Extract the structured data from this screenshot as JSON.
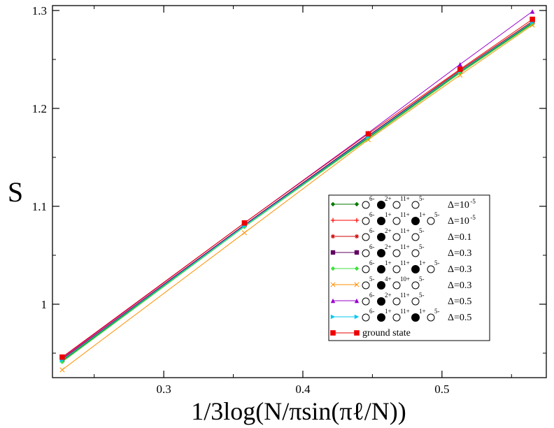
{
  "chart_data": {
    "type": "line",
    "title": "",
    "xlabel": "1/3log(N/πsin(πℓ/N))",
    "ylabel": "S",
    "xlim": [
      0.22,
      0.575
    ],
    "ylim": [
      0.925,
      1.305
    ],
    "x_ticks": [
      0.3,
      0.4,
      0.5
    ],
    "x_tick_labels": [
      "0.3",
      "0.4",
      "0.5"
    ],
    "y_ticks": [
      1.0,
      1.1,
      1.2,
      1.3
    ],
    "y_tick_labels": [
      "1",
      "1.1",
      "1.2",
      "1.3"
    ],
    "x": [
      0.227,
      0.358,
      0.447,
      0.513,
      0.565
    ],
    "grid": false,
    "legend_position": "lower-right",
    "series": [
      {
        "color": "#007a00",
        "marker": "diamond",
        "legend": {
          "parts": [
            [
              "○",
              "6-"
            ],
            [
              "●",
              "2+"
            ],
            [
              "○",
              "11+"
            ],
            [
              "○",
              "5-"
            ]
          ],
          "delta": "Δ=10",
          "delta_sup": "-5"
        },
        "values": [
          0.942,
          1.08,
          1.17,
          1.237,
          1.287
        ]
      },
      {
        "color": "#ff0000",
        "marker": "plus",
        "legend": {
          "parts": [
            [
              "○",
              "6-"
            ],
            [
              "●",
              "1+"
            ],
            [
              "○",
              "11+"
            ],
            [
              "●",
              "1+"
            ],
            [
              "○",
              "5-"
            ]
          ],
          "delta": "Δ=10",
          "delta_sup": "-5"
        },
        "values": [
          0.944,
          1.081,
          1.171,
          1.238,
          1.288
        ]
      },
      {
        "color": "#cc0000",
        "marker": "star",
        "legend": {
          "parts": [
            [
              "○",
              "6-"
            ],
            [
              "●",
              "2+"
            ],
            [
              "○",
              "11+"
            ],
            [
              "○",
              "5-"
            ]
          ],
          "delta": "Δ=0.1",
          "delta_sup": ""
        },
        "values": [
          0.944,
          1.081,
          1.172,
          1.239,
          1.289
        ]
      },
      {
        "color": "#600060",
        "marker": "square",
        "legend": {
          "parts": [
            [
              "○",
              "6-"
            ],
            [
              "●",
              "2+"
            ],
            [
              "○",
              "11+"
            ],
            [
              "○",
              "5-"
            ]
          ],
          "delta": "Δ=0.3",
          "delta_sup": ""
        },
        "values": [
          0.943,
          1.081,
          1.172,
          1.238,
          1.288
        ]
      },
      {
        "color": "#40e040",
        "marker": "diamond",
        "legend": {
          "parts": [
            [
              "○",
              "6-"
            ],
            [
              "●",
              "1+"
            ],
            [
              "○",
              "11+"
            ],
            [
              "●",
              "1+"
            ],
            [
              "○",
              "5-"
            ]
          ],
          "delta": "Δ=0.3",
          "delta_sup": ""
        },
        "values": [
          0.941,
          1.079,
          1.169,
          1.236,
          1.286
        ]
      },
      {
        "color": "#ff9000",
        "marker": "cross",
        "legend": {
          "parts": [
            [
              "○",
              "5-"
            ],
            [
              "●",
              "4+"
            ],
            [
              "○",
              "10+"
            ],
            [
              "○",
              "5-"
            ]
          ],
          "delta": "Δ=0.3",
          "delta_sup": ""
        },
        "values": [
          0.933,
          1.073,
          1.168,
          1.234,
          1.285
        ]
      },
      {
        "color": "#9900cc",
        "marker": "triangle",
        "legend": {
          "parts": [
            [
              "○",
              "6-"
            ],
            [
              "●",
              "2+"
            ],
            [
              "○",
              "11+"
            ],
            [
              "○",
              "5-"
            ]
          ],
          "delta": "Δ=0.5",
          "delta_sup": ""
        },
        "values": [
          0.945,
          1.083,
          1.175,
          1.245,
          1.299
        ]
      },
      {
        "color": "#00c8f0",
        "marker": "right-triangle",
        "legend": {
          "parts": [
            [
              "○",
              "6-"
            ],
            [
              "●",
              "1+"
            ],
            [
              "○",
              "11+"
            ],
            [
              "●",
              "1+"
            ],
            [
              "○",
              "5-"
            ]
          ],
          "delta": "Δ=0.5",
          "delta_sup": ""
        },
        "values": [
          0.943,
          1.08,
          1.171,
          1.238,
          1.288
        ]
      },
      {
        "color": "#ee0000",
        "marker": "square-big",
        "legend": {
          "parts": [],
          "delta": "",
          "delta_sup": "",
          "text": "ground state"
        },
        "values": [
          0.946,
          1.083,
          1.174,
          1.24,
          1.291
        ]
      }
    ]
  }
}
